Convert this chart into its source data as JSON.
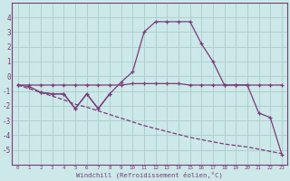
{
  "xlabel": "Windchill (Refroidissement éolien,°C)",
  "bg_color": "#cce8e8",
  "grid_color": "#aacccc",
  "line_color": "#7a3b7a",
  "x_values": [
    0,
    1,
    2,
    3,
    4,
    5,
    6,
    7,
    8,
    9,
    10,
    11,
    12,
    13,
    14,
    15,
    16,
    17,
    18,
    19,
    20,
    21,
    22,
    23
  ],
  "line1": [
    -0.6,
    -0.6,
    -0.6,
    -0.6,
    -0.6,
    -0.6,
    -0.6,
    -0.6,
    -0.6,
    -0.6,
    -0.5,
    -0.5,
    -0.5,
    -0.5,
    -0.5,
    -0.6,
    -0.6,
    -0.6,
    -0.6,
    -0.6,
    -0.6,
    -0.6,
    -0.6,
    -0.6
  ],
  "line2_x": [
    2,
    3,
    4,
    5,
    6,
    7,
    8
  ],
  "line2_y": [
    -1.1,
    -1.2,
    -1.2,
    -2.2,
    -1.2,
    -2.2,
    -1.2
  ],
  "line3": [
    -0.6,
    -0.7,
    -1.1,
    -1.2,
    -1.2,
    -2.2,
    -1.2,
    -2.2,
    -1.2,
    -0.4,
    0.3,
    3.0,
    3.7,
    3.7,
    3.7,
    3.7,
    2.2,
    1.0,
    -0.6,
    -0.6,
    -0.6,
    -2.5,
    -2.8,
    -5.3
  ],
  "line4": [
    -0.6,
    -0.85,
    -1.1,
    -1.35,
    -1.6,
    -1.9,
    -2.1,
    -2.35,
    -2.6,
    -2.85,
    -3.1,
    -3.35,
    -3.55,
    -3.75,
    -3.95,
    -4.15,
    -4.3,
    -4.45,
    -4.6,
    -4.7,
    -4.8,
    -4.95,
    -5.1,
    -5.25
  ],
  "ylim": [
    -6,
    5
  ],
  "yticks": [
    -5,
    -4,
    -3,
    -2,
    -1,
    0,
    1,
    2,
    3,
    4
  ],
  "xlim": [
    -0.5,
    23.5
  ]
}
